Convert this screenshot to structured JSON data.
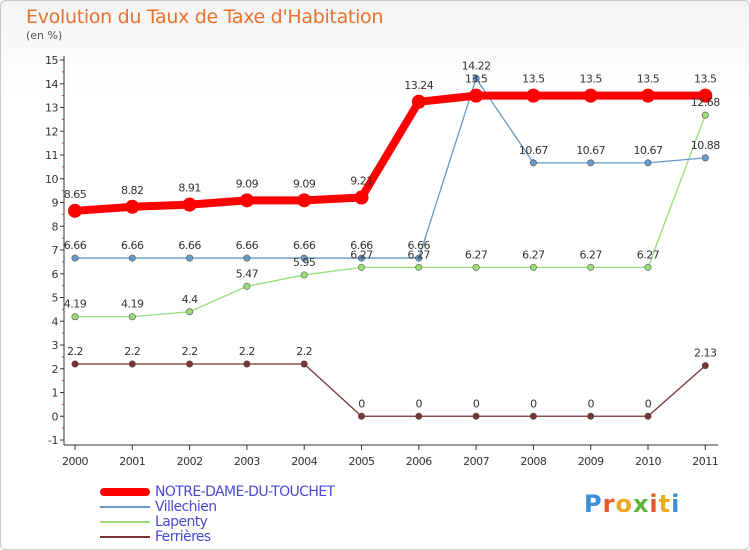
{
  "title": "Evolution du Taux de Taxe d'Habitation",
  "subtitle": "(en %)",
  "logo_text": "Proxiti",
  "chart_data": {
    "type": "line",
    "title": "Evolution du Taux de Taxe d'Habitation",
    "ylabel": "(en %)",
    "xlabel": "",
    "categories": [
      "2000",
      "2001",
      "2002",
      "2003",
      "2004",
      "2005",
      "2006",
      "2007",
      "2008",
      "2009",
      "2010",
      "2011"
    ],
    "y_ticks": [
      "-1",
      "0",
      "1",
      "2",
      "3",
      "4",
      "5",
      "6",
      "7",
      "8",
      "9",
      "10",
      "11",
      "12",
      "13",
      "14",
      "15"
    ],
    "ylim": [
      -1,
      15
    ],
    "grid": false,
    "legend_position": "bottom-left",
    "series": [
      {
        "name": "NOTRE-DAME-DU-TOUCHET",
        "color": "#ff0000",
        "values": [
          8.65,
          8.82,
          8.91,
          9.09,
          9.09,
          9.21,
          13.24,
          13.5,
          13.5,
          13.5,
          13.5,
          13.5
        ],
        "labels": [
          "8.65",
          "8.82",
          "8.91",
          "9.09",
          "9.09",
          "9.21",
          "13.24",
          "13.5",
          "13.5",
          "13.5",
          "13.5",
          "13.5"
        ]
      },
      {
        "name": "Villechien",
        "color": "#6699cc",
        "values": [
          6.66,
          6.66,
          6.66,
          6.66,
          6.66,
          6.66,
          6.66,
          14.22,
          10.67,
          10.67,
          10.67,
          10.88
        ],
        "labels": [
          "6.66",
          "6.66",
          "6.66",
          "6.66",
          "6.66",
          "6.66",
          "6.66",
          "14.22",
          "10.67",
          "10.67",
          "10.67",
          "10.88"
        ]
      },
      {
        "name": "Lapenty",
        "color": "#99dd77",
        "values": [
          4.19,
          4.19,
          4.4,
          5.47,
          5.95,
          6.27,
          6.27,
          6.27,
          6.27,
          6.27,
          6.27,
          12.68
        ],
        "labels": [
          "4.19",
          "4.19",
          "4.4",
          "5.47",
          "5.95",
          "6.27",
          "6.27",
          "6.27",
          "6.27",
          "6.27",
          "6.27",
          "12.68"
        ]
      },
      {
        "name": "Ferrières",
        "color": "#7a3333",
        "values": [
          2.2,
          2.2,
          2.2,
          2.2,
          2.2,
          0,
          0,
          0,
          0,
          0,
          0,
          2.13
        ],
        "labels": [
          "2.2",
          "2.2",
          "2.2",
          "2.2",
          "2.2",
          "0",
          "0",
          "0",
          "0",
          "0",
          "0",
          "2.13"
        ]
      }
    ]
  }
}
